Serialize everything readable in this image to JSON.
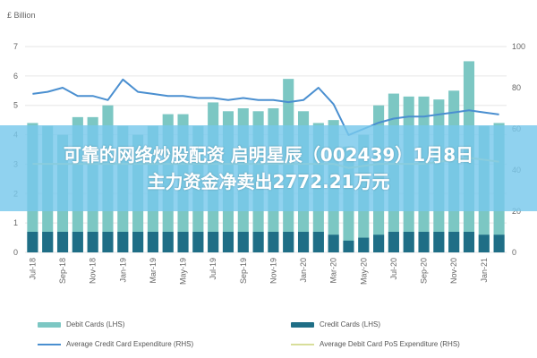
{
  "banner": {
    "line1": "可靠的网络炒股配资 启明星辰（002439）1月8日",
    "line2": "主力资金净卖出2772.21万元"
  },
  "chart_data": {
    "type": "bar",
    "title": "",
    "unit_label": "£ Billion",
    "left_axis": {
      "ylim": [
        0,
        7
      ],
      "ticks": [
        "0",
        "1",
        "2",
        "3",
        "4",
        "5",
        "6",
        "7"
      ]
    },
    "right_axis": {
      "ylim": [
        0,
        100
      ],
      "ticks": [
        "0",
        "20",
        "40",
        "60",
        "80",
        "100"
      ]
    },
    "categories": [
      "Jul-18",
      "Aug-18",
      "Sep-18",
      "Oct-18",
      "Nov-18",
      "Dec-18",
      "Jan-19",
      "Feb-19",
      "Mar-19",
      "Apr-19",
      "May-19",
      "Jun-19",
      "Jul-19",
      "Aug-19",
      "Sep-19",
      "Oct-19",
      "Nov-19",
      "Dec-19",
      "Jan-20",
      "Feb-20",
      "Mar-20",
      "Apr-20",
      "May-20",
      "Jun-20",
      "Jul-20",
      "Aug-20",
      "Sep-20",
      "Oct-20",
      "Nov-20",
      "Dec-20",
      "Jan-21",
      "Feb-21"
    ],
    "tick_labels": [
      "Jul-18",
      "Sep-18",
      "Nov-18",
      "Jan-19",
      "Mar-19",
      "May-19",
      "Jul-19",
      "Sep-19",
      "Nov-19",
      "Jan-20",
      "Mar-20",
      "May-20",
      "Jul-20",
      "Sep-20",
      "Nov-20",
      "Jan-21"
    ],
    "series": [
      {
        "name": "Debit Cards (LHS)",
        "type": "bar",
        "axis": "left",
        "color": "#7cc7c3",
        "values": [
          4.4,
          4.3,
          4.0,
          4.6,
          4.6,
          5.0,
          4.3,
          4.0,
          4.3,
          4.7,
          4.7,
          4.3,
          5.1,
          4.8,
          4.9,
          4.8,
          4.9,
          5.9,
          4.8,
          4.4,
          4.5,
          3.6,
          4.0,
          5.0,
          5.4,
          5.3,
          5.3,
          5.2,
          5.5,
          6.5,
          4.3,
          4.4
        ]
      },
      {
        "name": "Credit Cards (LHS)",
        "type": "bar",
        "axis": "left",
        "color": "#1f6e86",
        "values": [
          0.7,
          0.7,
          0.7,
          0.7,
          0.7,
          0.7,
          0.7,
          0.7,
          0.7,
          0.7,
          0.7,
          0.7,
          0.7,
          0.7,
          0.7,
          0.7,
          0.7,
          0.7,
          0.7,
          0.7,
          0.6,
          0.4,
          0.5,
          0.6,
          0.7,
          0.7,
          0.7,
          0.7,
          0.7,
          0.7,
          0.6,
          0.6
        ]
      },
      {
        "name": "Average Credit Card Expenditure (RHS)",
        "type": "line",
        "axis": "right",
        "color": "#4a8fd0",
        "values": [
          77,
          78,
          80,
          76,
          76,
          74,
          84,
          78,
          77,
          76,
          76,
          75,
          75,
          74,
          75,
          74,
          74,
          73,
          74,
          80,
          72,
          57,
          60,
          63,
          65,
          66,
          66,
          67,
          68,
          69,
          68,
          67
        ]
      },
      {
        "name": "Average Debit Card PoS Expenditure (RHS)",
        "type": "line",
        "axis": "right",
        "color": "#d8de9a",
        "values": [
          43,
          43,
          43,
          43,
          43,
          43,
          43,
          43,
          43,
          43,
          43,
          43,
          43,
          43,
          43,
          43,
          43,
          43,
          43,
          43,
          43,
          41,
          42,
          43,
          43,
          43,
          43,
          44,
          45,
          46,
          45,
          44
        ]
      }
    ],
    "legend_position": "bottom",
    "grid": true
  }
}
